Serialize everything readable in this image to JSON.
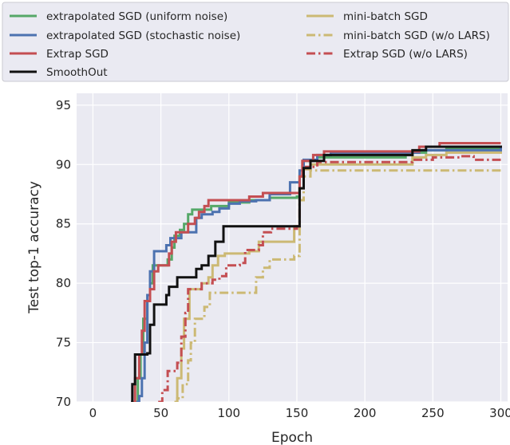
{
  "chart_data": {
    "type": "line",
    "title": "",
    "xlabel": "Epoch",
    "ylabel": "Test top-1 accuracy",
    "xlim": [
      -12,
      305
    ],
    "ylim": [
      70,
      96
    ],
    "xticks": [
      0,
      50,
      100,
      150,
      200,
      250,
      300
    ],
    "yticks": [
      70,
      75,
      80,
      85,
      90,
      95
    ],
    "grid": true,
    "legend_position": "top (above plot, two columns)",
    "series": [
      {
        "name": "extrapolated SGD (uniform noise)",
        "color": "#55a868",
        "style": "solid",
        "points": [
          [
            31,
            70
          ],
          [
            33,
            72
          ],
          [
            35,
            74
          ],
          [
            37,
            77
          ],
          [
            40,
            78.5
          ],
          [
            42,
            80
          ],
          [
            44,
            81.5
          ],
          [
            50,
            81.5
          ],
          [
            55,
            82
          ],
          [
            58,
            83
          ],
          [
            60,
            84
          ],
          [
            64,
            84.5
          ],
          [
            67,
            85
          ],
          [
            70,
            85.8
          ],
          [
            73,
            86.2
          ],
          [
            83,
            86.2
          ],
          [
            87,
            86.5
          ],
          [
            100,
            86.8
          ],
          [
            115,
            87
          ],
          [
            130,
            87.2
          ],
          [
            150,
            87.3
          ],
          [
            152,
            89
          ],
          [
            155,
            90.3
          ],
          [
            165,
            90.6
          ],
          [
            230,
            90.8
          ],
          [
            235,
            91
          ],
          [
            245,
            91.2
          ],
          [
            260,
            91.3
          ],
          [
            300,
            91.4
          ]
        ]
      },
      {
        "name": "extrapolated SGD (stochastic noise)",
        "color": "#4c72b0",
        "style": "solid",
        "points": [
          [
            32,
            70
          ],
          [
            34,
            70.5
          ],
          [
            36,
            72
          ],
          [
            38,
            75
          ],
          [
            40,
            79
          ],
          [
            42,
            81
          ],
          [
            45,
            82.7
          ],
          [
            52,
            82.7
          ],
          [
            54,
            83.2
          ],
          [
            57,
            83.8
          ],
          [
            63,
            83.8
          ],
          [
            65,
            84.3
          ],
          [
            73,
            84.3
          ],
          [
            76,
            85.5
          ],
          [
            80,
            85.8
          ],
          [
            88,
            86
          ],
          [
            93,
            86.3
          ],
          [
            100,
            86.7
          ],
          [
            108,
            86.9
          ],
          [
            120,
            87
          ],
          [
            130,
            87.5
          ],
          [
            145,
            88.5
          ],
          [
            150,
            88.5
          ],
          [
            152,
            89.5
          ],
          [
            155,
            90.4
          ],
          [
            165,
            90.8
          ],
          [
            175,
            91
          ],
          [
            235,
            91
          ],
          [
            240,
            91.2
          ],
          [
            300,
            91.5
          ]
        ]
      },
      {
        "name": "Extrap SGD",
        "color": "#c44e52",
        "style": "solid",
        "points": [
          [
            29,
            70
          ],
          [
            31,
            72
          ],
          [
            34,
            74
          ],
          [
            36,
            76
          ],
          [
            38,
            78.5
          ],
          [
            42,
            79.5
          ],
          [
            45,
            81
          ],
          [
            48,
            81.5
          ],
          [
            53,
            81.5
          ],
          [
            56,
            82.5
          ],
          [
            58,
            83.5
          ],
          [
            61,
            84.3
          ],
          [
            66,
            84.3
          ],
          [
            70,
            85
          ],
          [
            75,
            85.5
          ],
          [
            78,
            86
          ],
          [
            82,
            86.5
          ],
          [
            85,
            87
          ],
          [
            103,
            87
          ],
          [
            115,
            87.3
          ],
          [
            125,
            87.6
          ],
          [
            150,
            87.6
          ],
          [
            152,
            89
          ],
          [
            154,
            90.3
          ],
          [
            162,
            90.8
          ],
          [
            170,
            91.1
          ],
          [
            230,
            91.1
          ],
          [
            240,
            91.5
          ],
          [
            255,
            91.8
          ],
          [
            300,
            91.8
          ]
        ]
      },
      {
        "name": "SmoothOut",
        "color": "#111111",
        "style": "solid",
        "points": [
          [
            28,
            70
          ],
          [
            29,
            71.5
          ],
          [
            31,
            74
          ],
          [
            40,
            74.1
          ],
          [
            42,
            76.5
          ],
          [
            45,
            78.2
          ],
          [
            52,
            78.2
          ],
          [
            54,
            79
          ],
          [
            56,
            79.7
          ],
          [
            62,
            80.5
          ],
          [
            73,
            80.5
          ],
          [
            76,
            81.2
          ],
          [
            80,
            81.5
          ],
          [
            85,
            82.3
          ],
          [
            90,
            83.5
          ],
          [
            96,
            84.8
          ],
          [
            140,
            84.8
          ],
          [
            150,
            84.8
          ],
          [
            152,
            88
          ],
          [
            155,
            89.7
          ],
          [
            160,
            90.3
          ],
          [
            170,
            90.8
          ],
          [
            230,
            90.8
          ],
          [
            235,
            91.2
          ],
          [
            245,
            91.5
          ],
          [
            300,
            91.6
          ]
        ]
      },
      {
        "name": "mini-batch SGD",
        "color": "#ccb974",
        "style": "solid",
        "points": [
          [
            60,
            70
          ],
          [
            62,
            72
          ],
          [
            65,
            74.5
          ],
          [
            67,
            77
          ],
          [
            71,
            79.5
          ],
          [
            78,
            79.5
          ],
          [
            80,
            80
          ],
          [
            85,
            80.5
          ],
          [
            88,
            81.5
          ],
          [
            92,
            82.3
          ],
          [
            97,
            82.5
          ],
          [
            115,
            82.7
          ],
          [
            122,
            83.5
          ],
          [
            140,
            83.5
          ],
          [
            148,
            84.8
          ],
          [
            150,
            84.8
          ],
          [
            152,
            88
          ],
          [
            155,
            89.6
          ],
          [
            160,
            90
          ],
          [
            230,
            90
          ],
          [
            235,
            90.6
          ],
          [
            245,
            90.8
          ],
          [
            260,
            91
          ],
          [
            300,
            91.1
          ]
        ]
      },
      {
        "name": "mini-batch SGD (w/o LARS)",
        "color": "#ccb974",
        "style": "dashdot",
        "points": [
          [
            60,
            70
          ],
          [
            62,
            70.3
          ],
          [
            66,
            71.5
          ],
          [
            70,
            73.5
          ],
          [
            72,
            75
          ],
          [
            75,
            77
          ],
          [
            82,
            78
          ],
          [
            86,
            79.2
          ],
          [
            116,
            79.2
          ],
          [
            120,
            80.5
          ],
          [
            125,
            81.3
          ],
          [
            130,
            82
          ],
          [
            148,
            82.3
          ],
          [
            150,
            82.3
          ],
          [
            152,
            87
          ],
          [
            155,
            89
          ],
          [
            160,
            89.5
          ],
          [
            300,
            89.6
          ]
        ]
      },
      {
        "name": "Extrap SGD (w/o LARS)",
        "color": "#c44e52",
        "style": "dashdot",
        "points": [
          [
            48,
            70
          ],
          [
            51,
            71
          ],
          [
            55,
            72.6
          ],
          [
            62,
            73.3
          ],
          [
            65,
            75.5
          ],
          [
            68,
            77.5
          ],
          [
            70,
            79.5
          ],
          [
            80,
            80
          ],
          [
            88,
            80.3
          ],
          [
            93,
            80.6
          ],
          [
            98,
            81.5
          ],
          [
            108,
            81.7
          ],
          [
            112,
            82.8
          ],
          [
            122,
            83.2
          ],
          [
            125,
            84.3
          ],
          [
            131,
            84.6
          ],
          [
            145,
            84.6
          ],
          [
            150,
            84.8
          ],
          [
            152,
            88
          ],
          [
            155,
            89.8
          ],
          [
            165,
            90.2
          ],
          [
            225,
            90.2
          ],
          [
            235,
            90.4
          ],
          [
            250,
            90.6
          ],
          [
            270,
            90.7
          ],
          [
            280,
            90.4
          ],
          [
            300,
            90.4
          ]
        ]
      }
    ]
  }
}
